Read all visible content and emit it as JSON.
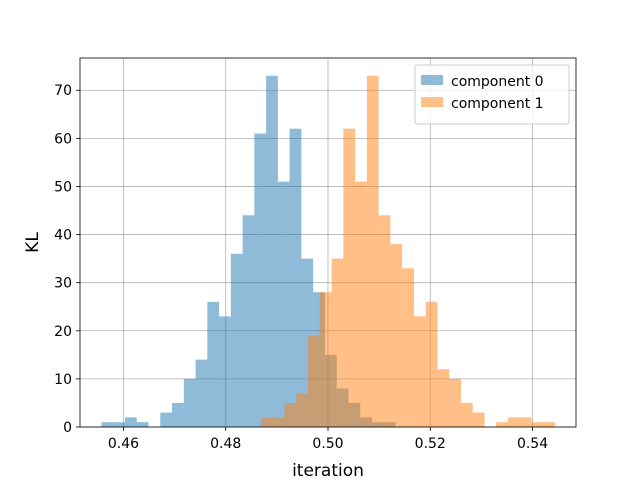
{
  "chart_data": {
    "type": "histogram",
    "xlabel": "iteration",
    "ylabel": "KL",
    "xlim": [
      0.4515,
      0.5485
    ],
    "ylim": [
      0,
      76.7
    ],
    "xticks": [
      0.46,
      0.48,
      0.5,
      0.52,
      0.54
    ],
    "xtick_labels": [
      "0.46",
      "0.48",
      "0.50",
      "0.52",
      "0.54"
    ],
    "yticks": [
      0,
      10,
      20,
      30,
      40,
      50,
      60,
      70
    ],
    "ytick_labels": [
      "0",
      "10",
      "20",
      "30",
      "40",
      "50",
      "60",
      "70"
    ],
    "grid": true,
    "legend_position": "top-right",
    "series": [
      {
        "name": "component 0",
        "color": "#1f77b4",
        "alpha": 0.5,
        "bin_edges": [
          0.4557,
          0.458,
          0.4603,
          0.4626,
          0.4649,
          0.4672,
          0.4695,
          0.4718,
          0.4741,
          0.4764,
          0.4787,
          0.481,
          0.4833,
          0.4856,
          0.4879,
          0.4902,
          0.4925,
          0.4948,
          0.4971,
          0.4994,
          0.5017,
          0.504,
          0.5063,
          0.5086,
          0.5109,
          0.5132
        ],
        "counts": [
          1,
          1,
          2,
          1,
          0,
          3,
          5,
          10,
          14,
          26,
          23,
          36,
          44,
          61,
          73,
          51,
          62,
          35,
          28,
          15,
          8,
          5,
          2,
          1,
          1
        ]
      },
      {
        "name": "component 1",
        "color": "#ff7f0e",
        "alpha": 0.5,
        "bin_edges": [
          0.4869,
          0.4892,
          0.4915,
          0.4938,
          0.4961,
          0.4984,
          0.5007,
          0.503,
          0.5053,
          0.5076,
          0.5099,
          0.5122,
          0.5145,
          0.5168,
          0.5191,
          0.5214,
          0.5237,
          0.526,
          0.5283,
          0.5306,
          0.5329,
          0.5352,
          0.5375,
          0.5398,
          0.5421,
          0.5444
        ],
        "counts": [
          2,
          2,
          5,
          7,
          19,
          28,
          35,
          62,
          51,
          73,
          44,
          38,
          33,
          23,
          26,
          12,
          10,
          5,
          3,
          0,
          1,
          2,
          2,
          1,
          1
        ]
      }
    ]
  }
}
